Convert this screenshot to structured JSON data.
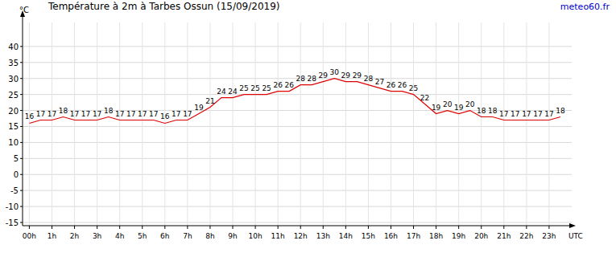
{
  "chart_data": {
    "type": "line",
    "title": "Température à 2m à Tarbes Ossun (15/09/2019)",
    "annotations": [
      "meteo60.fr"
    ],
    "y_label": "°C",
    "x_label": "UTC",
    "x": [
      0,
      0.5,
      1,
      1.5,
      2,
      2.5,
      3,
      3.5,
      4,
      4.5,
      5,
      5.5,
      6,
      6.5,
      7,
      7.5,
      8,
      8.5,
      9,
      9.5,
      10,
      10.5,
      11,
      11.5,
      12,
      12.5,
      13,
      13.5,
      14,
      14.5,
      15,
      15.5,
      16,
      16.5,
      17,
      17.5,
      18,
      18.5,
      19,
      19.5,
      20,
      20.5,
      21,
      21.5,
      22,
      22.5,
      23,
      23.5
    ],
    "values": [
      16,
      17,
      17,
      18,
      17,
      17,
      17,
      18,
      17,
      17,
      17,
      17,
      16,
      17,
      17,
      19,
      21,
      24,
      24,
      25,
      25,
      25,
      26,
      26,
      28,
      28,
      29,
      30,
      29,
      29,
      28,
      27,
      26,
      26,
      25,
      22,
      19,
      20,
      19,
      20,
      18,
      18,
      17,
      17,
      17,
      17,
      17,
      18
    ],
    "color": "#dd0000",
    "xlim": [
      -0.3,
      24
    ],
    "xticks": [
      {
        "value": 0,
        "label": "00h"
      },
      {
        "value": 1,
        "label": "1h"
      },
      {
        "value": 2,
        "label": "2h"
      },
      {
        "value": 3,
        "label": "3h"
      },
      {
        "value": 4,
        "label": "4h"
      },
      {
        "value": 5,
        "label": "5h"
      },
      {
        "value": 6,
        "label": "6h"
      },
      {
        "value": 7,
        "label": "7h"
      },
      {
        "value": 8,
        "label": "8h"
      },
      {
        "value": 9,
        "label": "9h"
      },
      {
        "value": 10,
        "label": "10h"
      },
      {
        "value": 11,
        "label": "11h"
      },
      {
        "value": 12,
        "label": "12h"
      },
      {
        "value": 13,
        "label": "13h"
      },
      {
        "value": 14,
        "label": "14h"
      },
      {
        "value": 15,
        "label": "15h"
      },
      {
        "value": 16,
        "label": "16h"
      },
      {
        "value": 17,
        "label": "17h"
      },
      {
        "value": 18,
        "label": "18h"
      },
      {
        "value": 19,
        "label": "19h"
      },
      {
        "value": 20,
        "label": "20h"
      },
      {
        "value": 21,
        "label": "21h"
      },
      {
        "value": 22,
        "label": "22h"
      },
      {
        "value": 23,
        "label": "23h"
      }
    ],
    "ylim": [
      -16,
      50
    ],
    "yticks": [
      -15,
      -10,
      -5,
      0,
      5,
      10,
      15,
      20,
      25,
      30,
      35,
      40
    ],
    "grid": true,
    "data_labels": true
  }
}
